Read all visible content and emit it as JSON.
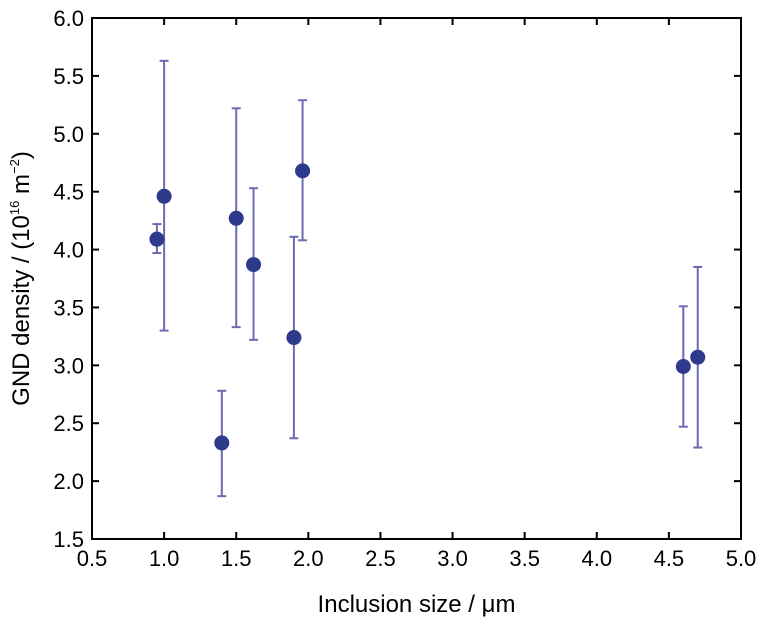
{
  "chart_data": {
    "type": "scatter",
    "title": "",
    "xlabel": "Inclusion size / μm",
    "ylabel_prefix": "GND density / (10",
    "ylabel_exp": "16",
    "ylabel_unit": " m",
    "ylabel_unit_exp": "−2",
    "ylabel_suffix": ")",
    "xlim": [
      0.5,
      5.0
    ],
    "ylim": [
      1.5,
      6.0
    ],
    "x_ticks": [
      "0.5",
      "1.0",
      "1.5",
      "2.0",
      "2.5",
      "3.0",
      "3.5",
      "4.0",
      "4.5",
      "5.0"
    ],
    "y_ticks": [
      "1.5",
      "2.0",
      "2.5",
      "3.0",
      "3.5",
      "4.0",
      "4.5",
      "5.0",
      "5.5",
      "6.0"
    ],
    "grid": false,
    "marker_color": "#2e3a8c",
    "errorbar_color": "#6b6bb0",
    "points": [
      {
        "x": 0.95,
        "y": 4.09,
        "err_low": 3.97,
        "err_high": 4.22
      },
      {
        "x": 1.0,
        "y": 4.46,
        "err_low": 3.3,
        "err_high": 5.63
      },
      {
        "x": 1.4,
        "y": 2.33,
        "err_low": 1.87,
        "err_high": 2.78
      },
      {
        "x": 1.5,
        "y": 4.27,
        "err_low": 3.33,
        "err_high": 5.22
      },
      {
        "x": 1.62,
        "y": 3.87,
        "err_low": 3.22,
        "err_high": 4.53
      },
      {
        "x": 1.9,
        "y": 3.24,
        "err_low": 2.37,
        "err_high": 4.11
      },
      {
        "x": 1.96,
        "y": 4.68,
        "err_low": 4.08,
        "err_high": 5.29
      },
      {
        "x": 4.6,
        "y": 2.99,
        "err_low": 2.47,
        "err_high": 3.51
      },
      {
        "x": 4.7,
        "y": 3.07,
        "err_low": 2.29,
        "err_high": 3.85
      }
    ]
  }
}
